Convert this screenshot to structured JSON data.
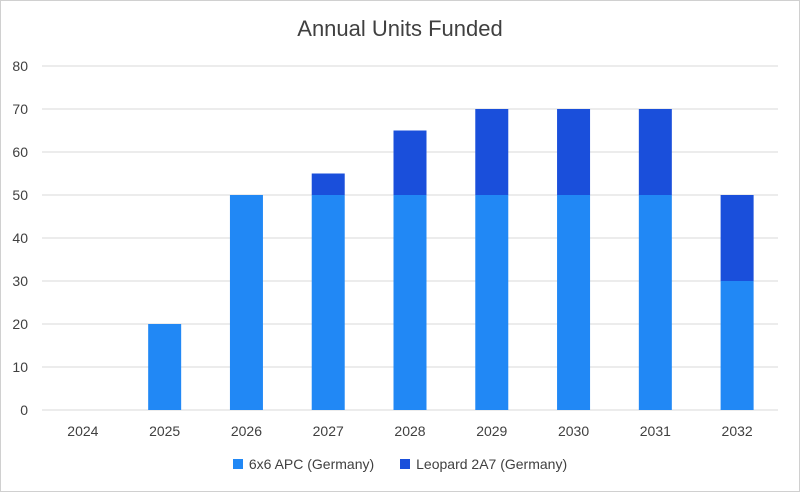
{
  "chart_data": {
    "type": "bar",
    "stacked": true,
    "title": "Annual Units Funded",
    "xlabel": "",
    "ylabel": "",
    "categories": [
      "2024",
      "2025",
      "2026",
      "2027",
      "2028",
      "2029",
      "2030",
      "2031",
      "2032"
    ],
    "series": [
      {
        "name": "6x6 APC (Germany)",
        "color": "#2188f5",
        "values": [
          0,
          20,
          50,
          50,
          50,
          50,
          50,
          50,
          30
        ]
      },
      {
        "name": "Leopard 2A7 (Germany)",
        "color": "#1a4fdb",
        "values": [
          0,
          0,
          0,
          5,
          15,
          20,
          20,
          20,
          20
        ]
      }
    ],
    "ylim": [
      0,
      80
    ],
    "yticks": [
      0,
      10,
      20,
      30,
      40,
      50,
      60,
      70,
      80
    ],
    "grid": true,
    "gridColor": "#d9d9d9",
    "legend_position": "bottom"
  }
}
